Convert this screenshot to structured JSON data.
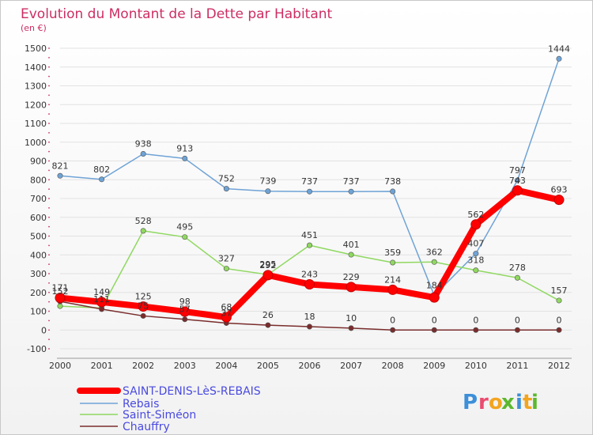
{
  "chart_data": {
    "type": "line",
    "title": "Evolution du Montant de la Dette par Habitant",
    "subtitle": "(en €)",
    "categories": [
      "2000",
      "2001",
      "2002",
      "2003",
      "2004",
      "2005",
      "2006",
      "2007",
      "2008",
      "2009",
      "2010",
      "2011",
      "2012"
    ],
    "ylim": [
      -100,
      1500
    ],
    "yticks": [
      -100,
      0,
      100,
      200,
      300,
      400,
      500,
      600,
      700,
      800,
      900,
      1000,
      1100,
      1200,
      1300,
      1400,
      1500
    ],
    "grid": "horizontal",
    "legend_position": "bottom-left",
    "series": [
      {
        "name": "SAINT-DENIS-LèS-REBAIS",
        "color": "#ff0000",
        "width": 8,
        "values": [
          171,
          149,
          125,
          98,
          68,
          292,
          243,
          229,
          214,
          173,
          562,
          743,
          693
        ]
      },
      {
        "name": "Rebais",
        "color": "#6fa3d6",
        "width": 1.5,
        "values": [
          821,
          802,
          938,
          913,
          752,
          739,
          737,
          737,
          738,
          184,
          407,
          797,
          1444
        ]
      },
      {
        "name": "Saint-Siméon",
        "color": "#90d860",
        "width": 1.5,
        "values": [
          127,
          117,
          528,
          495,
          327,
          295,
          451,
          401,
          359,
          362,
          318,
          278,
          157
        ]
      },
      {
        "name": "Chauffry",
        "color": "#7a2c2c",
        "width": 1.5,
        "values": [
          152,
          111,
          75,
          57,
          37,
          26,
          18,
          10,
          0,
          0,
          0,
          0,
          0
        ]
      }
    ],
    "data_labels": [
      {
        "series": 0,
        "labels": [
          "171",
          "149",
          "125",
          "98",
          "68",
          "292",
          "243",
          "229",
          "214",
          "",
          "562",
          "743",
          "693"
        ]
      },
      {
        "series": 1,
        "labels": [
          "821",
          "802",
          "938",
          "913",
          "752",
          "739",
          "737",
          "737",
          "738",
          "184",
          "407",
          "797",
          "1444"
        ]
      },
      {
        "series": 2,
        "labels": [
          "",
          "",
          "528",
          "495",
          "327",
          "295",
          "451",
          "401",
          "359",
          "362",
          "318",
          "278",
          "157"
        ]
      },
      {
        "series": 3,
        "labels": [
          "152",
          "111",
          "75",
          "57",
          "37",
          "26",
          "18",
          "10",
          "0",
          "0",
          "0",
          "0",
          "0"
        ]
      }
    ]
  },
  "logo": {
    "letters": [
      "P",
      "r",
      "o",
      "x",
      "i",
      "t",
      "i"
    ],
    "colors": [
      "#3c8fd8",
      "#e94c6f",
      "#f2a51f",
      "#5cb82e",
      "#3c8fd8",
      "#f2a51f",
      "#5cb82e"
    ]
  }
}
